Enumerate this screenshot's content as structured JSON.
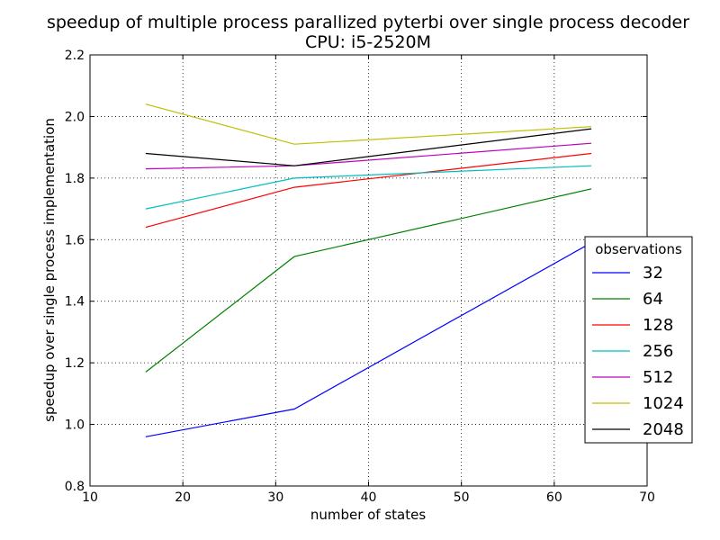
{
  "chart_data": {
    "type": "line",
    "title": "speedup of multiple process parallized pyterbi over single process decoder",
    "subtitle": "CPU: i5-2520M",
    "xlabel": "number of states",
    "ylabel": "speedup over single process implementation",
    "xlim": [
      10,
      70
    ],
    "ylim": [
      0.8,
      2.2
    ],
    "xticks": [
      10,
      20,
      30,
      40,
      50,
      60,
      70
    ],
    "yticks": [
      0.8,
      1.0,
      1.2,
      1.4,
      1.6,
      1.8,
      2.0,
      2.2
    ],
    "xtick_labels": [
      "10",
      "20",
      "30",
      "40",
      "50",
      "60",
      "70"
    ],
    "ytick_labels": [
      "0.8",
      "1.0",
      "1.2",
      "1.4",
      "1.6",
      "1.8",
      "2.0",
      "2.2"
    ],
    "grid": true,
    "legend": {
      "title": "observations",
      "placement": "right"
    },
    "x": [
      16,
      32,
      64
    ],
    "series": [
      {
        "name": "32",
        "color": "#0000ff",
        "values": [
          0.96,
          1.05,
          1.59
        ]
      },
      {
        "name": "64",
        "color": "#008000",
        "values": [
          1.17,
          1.545,
          1.765
        ]
      },
      {
        "name": "128",
        "color": "#ff0000",
        "values": [
          1.64,
          1.77,
          1.88
        ]
      },
      {
        "name": "256",
        "color": "#00bfbf",
        "values": [
          1.7,
          1.8,
          1.84
        ]
      },
      {
        "name": "512",
        "color": "#bf00bf",
        "values": [
          1.83,
          1.84,
          1.913
        ]
      },
      {
        "name": "1024",
        "color": "#bfbf00",
        "values": [
          2.04,
          1.91,
          1.967
        ]
      },
      {
        "name": "2048",
        "color": "#000000",
        "values": [
          1.88,
          1.84,
          1.96
        ]
      }
    ]
  }
}
